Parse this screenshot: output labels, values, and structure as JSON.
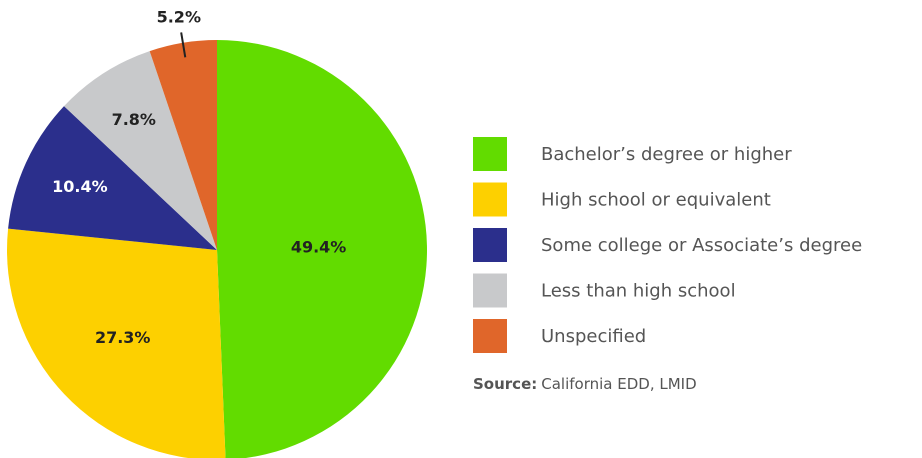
{
  "chart_data": {
    "type": "pie",
    "categories": [
      "Bachelor’s degree or higher",
      "High school or equivalent",
      "Some college or Associate’s degree",
      "Less than high school",
      "Unspecified"
    ],
    "values": [
      49.4,
      27.3,
      10.4,
      7.8,
      5.2
    ],
    "value_labels": [
      "49.4%",
      "27.3%",
      "10.4%",
      "7.8%",
      "5.2%"
    ],
    "colors": [
      "#62dc00",
      "#fdd000",
      "#2b2f8c",
      "#c8c9cb",
      "#e0662a"
    ],
    "source": {
      "label": "Source:",
      "text": "California EDD, LMID"
    }
  }
}
